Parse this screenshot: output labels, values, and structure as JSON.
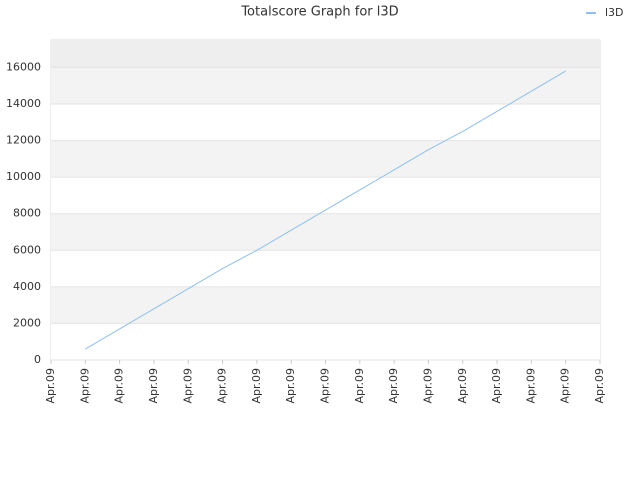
{
  "chart_data": {
    "type": "line",
    "title": "Totalscore Graph for l3D",
    "categories": [
      "Apr.09",
      "Apr.09",
      "Apr.09",
      "Apr.09",
      "Apr.09",
      "Apr.09",
      "Apr.09",
      "Apr.09",
      "Apr.09",
      "Apr.09",
      "Apr.09",
      "Apr.09",
      "Apr.09",
      "Apr.09",
      "Apr.09",
      "Apr.09",
      "Apr.09"
    ],
    "series": [
      {
        "name": "l3D",
        "color": "#8fbfef",
        "values": [
          null,
          600,
          1700,
          2800,
          3900,
          5000,
          6000,
          7100,
          8200,
          9300,
          10400,
          11500,
          12500,
          13600,
          14700,
          15800,
          null
        ]
      }
    ],
    "ylim": [
      0,
      17500
    ],
    "yticks": [
      0,
      2000,
      4000,
      6000,
      8000,
      10000,
      12000,
      14000,
      16000
    ],
    "grid": true,
    "legend": "top-right"
  }
}
